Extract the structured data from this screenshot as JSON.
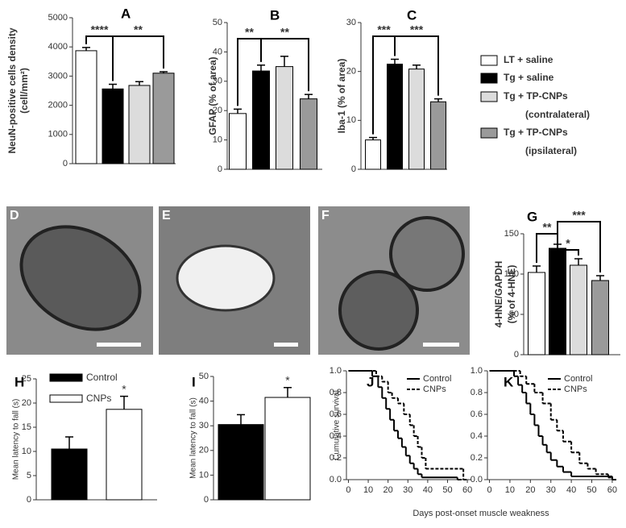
{
  "legend": {
    "position": "right",
    "entries": [
      {
        "name": "LT + saline",
        "color": "#ffffff"
      },
      {
        "name": "Tg + saline",
        "color": "#000000"
      },
      {
        "name": "Tg + TP-CNPs",
        "note": "(contralateral)",
        "color": "#dcdcdc"
      },
      {
        "name": "Tg + TP-CNPs",
        "note": "(ipsilateral)",
        "color": "#9a9a9a"
      }
    ]
  },
  "images": [
    {
      "label": "D"
    },
    {
      "label": "E"
    },
    {
      "label": "F"
    }
  ],
  "chart_data": [
    {
      "type": "bar",
      "label": "A",
      "ylabel": [
        "NeuN-positive cells density",
        "(cell/mm²)"
      ],
      "values": [
        3870,
        2560,
        2680,
        3100
      ],
      "errors": [
        110,
        160,
        130,
        50
      ],
      "ylim": [
        0,
        5000
      ],
      "yticks": [
        0,
        1000,
        2000,
        3000,
        4000,
        5000
      ],
      "annotations": [
        "****",
        "**"
      ]
    },
    {
      "type": "bar",
      "label": "B",
      "ylabel": [
        "GFAP (% of area)"
      ],
      "values": [
        19,
        33.5,
        35,
        24
      ],
      "errors": [
        1.5,
        2,
        3.5,
        1.5
      ],
      "ylim": [
        0,
        50
      ],
      "yticks": [
        0,
        10,
        20,
        30,
        40,
        50
      ],
      "annotations": [
        "**",
        "**"
      ]
    },
    {
      "type": "bar",
      "label": "C",
      "ylabel": [
        "Iba-1 (% of area)"
      ],
      "values": [
        6,
        21.5,
        20.5,
        13.8
      ],
      "errors": [
        0.5,
        1,
        0.8,
        0.6
      ],
      "ylim": [
        0,
        30
      ],
      "yticks": [
        0,
        10,
        20,
        30
      ],
      "annotations": [
        "***",
        "***"
      ]
    },
    {
      "type": "bar",
      "label": "G",
      "ylabel": [
        "4-HNE/GAPDH",
        "(% of 4-HNE)"
      ],
      "values": [
        102,
        132,
        111,
        92
      ],
      "errors": [
        8,
        5,
        8,
        6
      ],
      "ylim": [
        0,
        150
      ],
      "yticks": [
        0,
        50,
        100,
        150
      ],
      "annotations": [
        "**",
        "*",
        "***"
      ]
    },
    {
      "type": "groupbar",
      "label": "H",
      "ylabel": "Mean latency to fall (s)",
      "series": [
        {
          "name": "Control",
          "color": "#000000",
          "values": [
            10.5
          ],
          "errors": [
            2.5
          ]
        },
        {
          "name": "CNPs",
          "color": "#ffffff",
          "values": [
            18.7
          ],
          "errors": [
            2.7
          ]
        }
      ],
      "ylim": [
        0,
        25
      ],
      "yticks": [
        0,
        5,
        10,
        15,
        20,
        25
      ],
      "annotations": [
        "*"
      ]
    },
    {
      "type": "groupbar",
      "label": "I",
      "ylabel": "Mean latency to fall (s)",
      "series": [
        {
          "color": "#000000",
          "values": [
            30.5
          ],
          "errors": [
            4
          ]
        },
        {
          "color": "#ffffff",
          "values": [
            41.5
          ],
          "errors": [
            4
          ]
        }
      ],
      "ylim": [
        0,
        50
      ],
      "yticks": [
        0,
        10,
        20,
        30,
        40,
        50
      ],
      "annotations": [
        "*"
      ]
    },
    {
      "type": "line",
      "label": "J",
      "ylabel": "Cumulative survival",
      "xlabel": "Days post-onset muscle weakness",
      "xlim": [
        -1,
        62
      ],
      "ylim": [
        0,
        1
      ],
      "xticks": [
        0,
        10,
        20,
        30,
        40,
        50,
        60
      ],
      "yticks": [
        {
          "value": 0,
          "label": "0.0"
        },
        0.2,
        0.4,
        0.6,
        0.8,
        {
          "value": 1,
          "label": "1.0"
        }
      ],
      "series": [
        {
          "name": "Control",
          "color": "#000000",
          "style": "solid",
          "x": [
            0,
            12,
            15,
            17,
            19,
            21,
            23,
            25,
            27,
            29,
            31,
            33,
            35,
            37,
            55
          ],
          "values": [
            1,
            0.95,
            0.85,
            0.75,
            0.65,
            0.55,
            0.45,
            0.38,
            0.3,
            0.22,
            0.15,
            0.1,
            0.05,
            0.02,
            0
          ]
        },
        {
          "name": "CNPs",
          "color": "#000000",
          "style": "dashed",
          "x": [
            0,
            14,
            17,
            20,
            22,
            25,
            28,
            31,
            33,
            35,
            37,
            39,
            58
          ],
          "values": [
            1,
            0.95,
            0.9,
            0.8,
            0.75,
            0.7,
            0.6,
            0.5,
            0.4,
            0.3,
            0.2,
            0.1,
            0
          ]
        }
      ]
    },
    {
      "type": "line",
      "label": "K",
      "xlim": [
        -1,
        62
      ],
      "ylim": [
        0,
        1
      ],
      "xticks": [
        0,
        10,
        20,
        30,
        40,
        50,
        60
      ],
      "yticks": [
        {
          "value": 0,
          "label": "0.0"
        },
        0.2,
        0.4,
        0.6,
        0.8,
        {
          "value": 1,
          "label": "1.0"
        }
      ],
      "series": [
        {
          "name": "Control",
          "color": "#000000",
          "style": "solid",
          "x": [
            0,
            12,
            14,
            16,
            18,
            20,
            22,
            24,
            26,
            28,
            30,
            33,
            36,
            40,
            60
          ],
          "values": [
            1,
            0.95,
            0.87,
            0.8,
            0.7,
            0.6,
            0.5,
            0.4,
            0.32,
            0.25,
            0.18,
            0.12,
            0.07,
            0.03,
            0
          ]
        },
        {
          "name": "CNPs",
          "color": "#000000",
          "style": "dashed",
          "x": [
            0,
            15,
            18,
            22,
            26,
            30,
            33,
            36,
            40,
            44,
            48,
            52,
            58
          ],
          "values": [
            1,
            0.95,
            0.88,
            0.8,
            0.7,
            0.55,
            0.45,
            0.35,
            0.25,
            0.15,
            0.1,
            0.05,
            0.02
          ]
        }
      ]
    }
  ]
}
